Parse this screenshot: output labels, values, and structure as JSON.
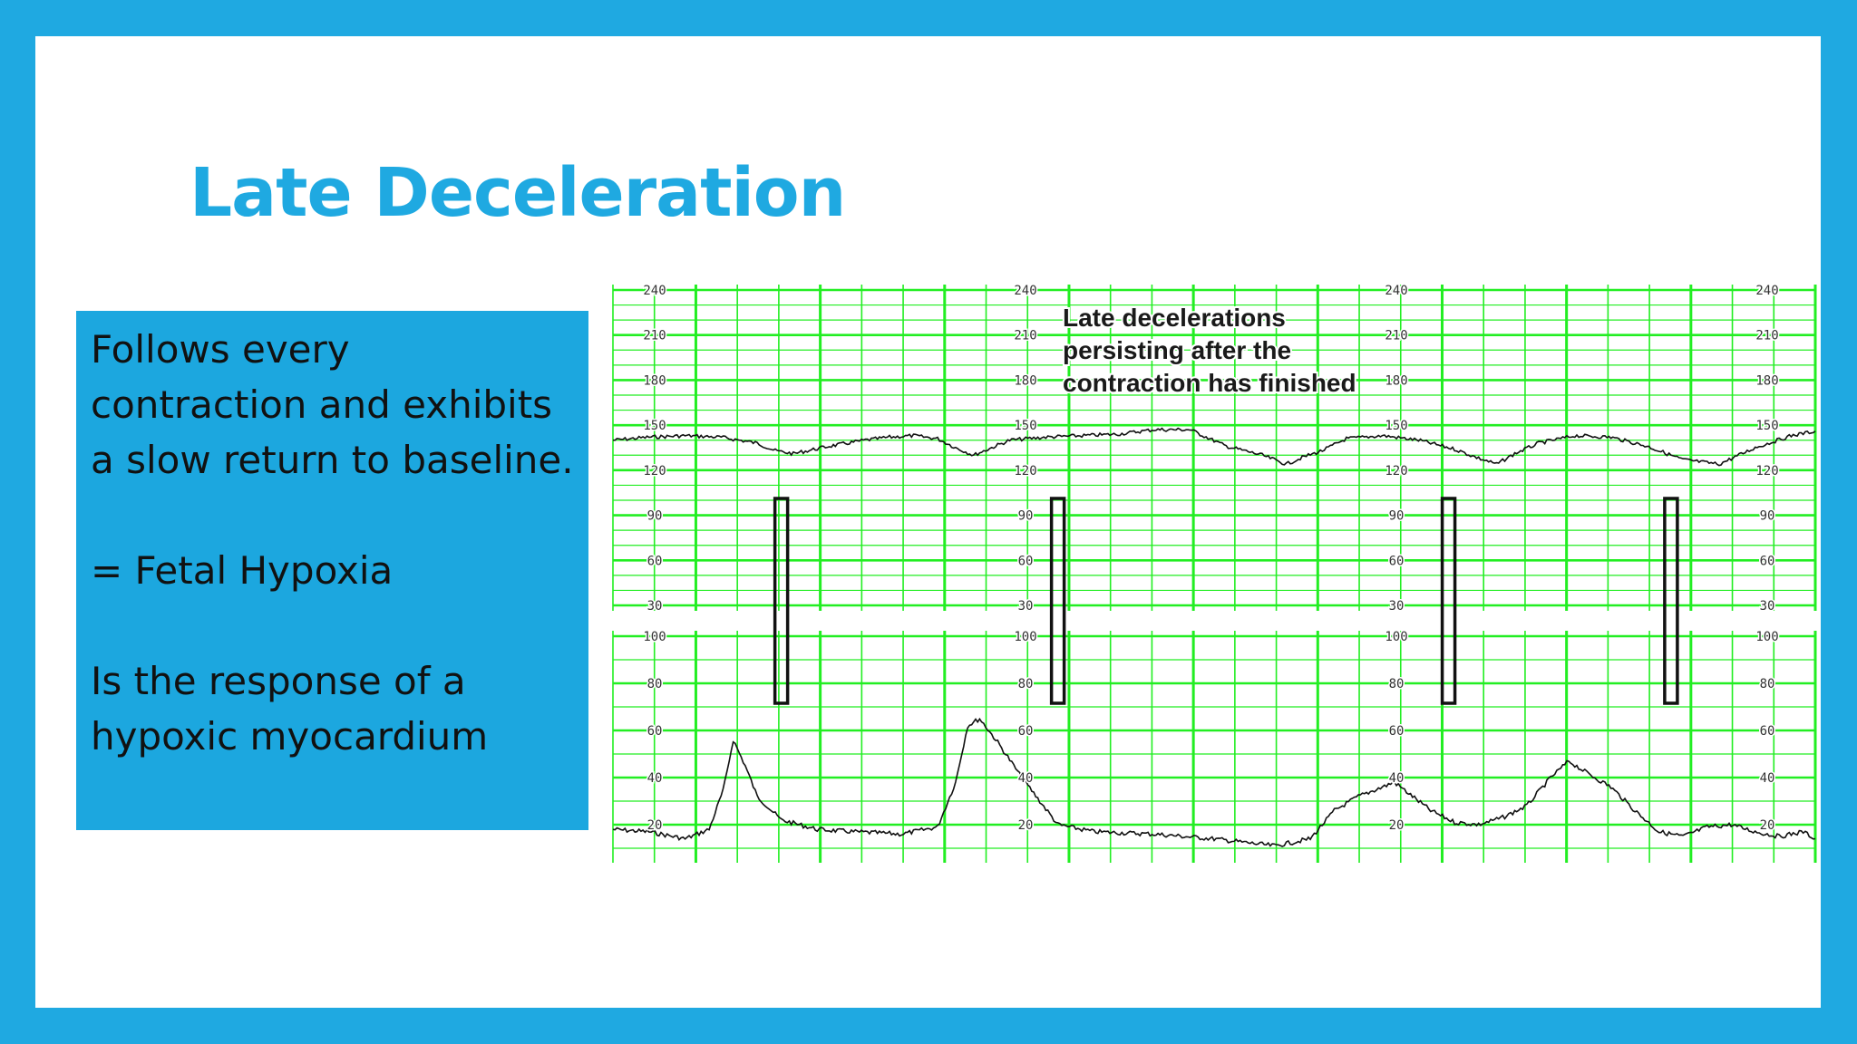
{
  "slide": {
    "title": "Late Deceleration",
    "box": {
      "line1": "Follows every",
      "line2": "contraction and exhibits",
      "line3": "a slow return to baseline.",
      "line4": "= Fetal Hypoxia",
      "line5": "Is the response of a",
      "line6": "hypoxic myocardium"
    },
    "colors": {
      "frame": "#1fa9e1",
      "box": "#1ca7df",
      "grid": "#22ee22",
      "trace": "#111111"
    }
  },
  "chart_data": {
    "type": "line",
    "annotation": [
      "Late decelerations",
      "persisting after the",
      "contraction has finished"
    ],
    "fhr": {
      "ticks": [
        "240",
        "210",
        "180",
        "150",
        "120",
        "90",
        "60",
        "30"
      ],
      "ylim": [
        30,
        240
      ],
      "x": [
        0,
        3,
        6,
        9,
        12,
        13.5,
        15,
        18,
        21,
        23,
        25,
        27,
        28.5,
        30,
        33,
        36,
        39,
        42,
        45,
        48,
        51,
        54,
        56,
        57.5,
        59,
        61,
        64,
        67,
        70,
        72,
        73.5,
        75,
        77,
        80,
        83,
        86,
        89,
        92,
        95,
        98,
        100
      ],
      "values": [
        140,
        142,
        143,
        142,
        138,
        133,
        131,
        136,
        140,
        142,
        143,
        141,
        135,
        130,
        140,
        142,
        143,
        144,
        147,
        147,
        136,
        130,
        124,
        129,
        133,
        141,
        143,
        140,
        134,
        128,
        124,
        131,
        138,
        143,
        142,
        136,
        127,
        124,
        135,
        143,
        146
      ]
    },
    "uc": {
      "ticks": [
        "100",
        "80",
        "60",
        "40",
        "20"
      ],
      "ylim": [
        0,
        100
      ],
      "x": [
        0,
        3,
        6,
        8,
        9.2,
        10,
        11,
        12,
        14,
        17,
        20,
        24,
        27,
        28.5,
        29.5,
        30.5,
        32,
        34,
        37,
        40,
        45,
        50,
        55,
        58,
        60,
        62,
        64,
        65,
        66,
        68,
        70,
        72,
        74,
        76,
        78,
        79.5,
        81,
        83,
        85,
        87,
        89,
        91,
        93,
        95,
        97,
        99,
        100
      ],
      "values": [
        18,
        17,
        14,
        18,
        35,
        56,
        45,
        32,
        22,
        18,
        17,
        16,
        19,
        38,
        62,
        65,
        55,
        40,
        20,
        17,
        16,
        14,
        11,
        14,
        26,
        32,
        36,
        38,
        34,
        26,
        21,
        20,
        23,
        28,
        40,
        47,
        42,
        36,
        26,
        17,
        15,
        19,
        20,
        17,
        15,
        17,
        14
      ]
    },
    "markers": [
      14,
      37,
      69.5,
      88
    ]
  }
}
